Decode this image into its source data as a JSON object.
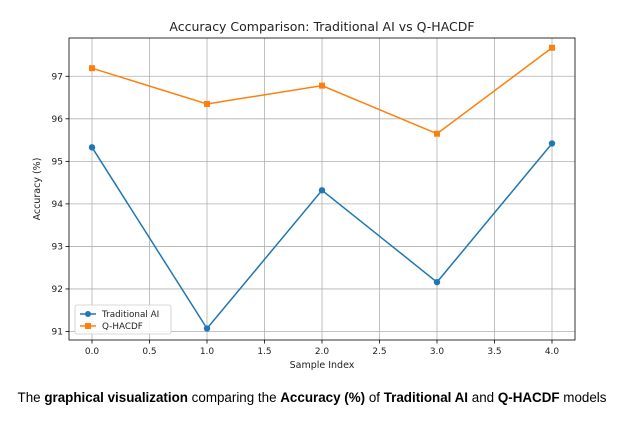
{
  "chart_data": {
    "type": "line",
    "title": "Accuracy Comparison: Traditional AI vs Q-HACDF",
    "xlabel": "Sample Index",
    "ylabel": "Accuracy (%)",
    "x": [
      0,
      1,
      2,
      3,
      4
    ],
    "xlim": [
      -0.2,
      4.2
    ],
    "ylim": [
      90.8,
      97.9
    ],
    "xticks": [
      "0.0",
      "0.5",
      "1.0",
      "1.5",
      "2.0",
      "2.5",
      "3.0",
      "3.5",
      "4.0"
    ],
    "yticks": [
      "91",
      "92",
      "93",
      "94",
      "95",
      "96",
      "97"
    ],
    "grid": true,
    "legend_position": "lower-left",
    "series": [
      {
        "name": "Traditional AI",
        "values": [
          95.33,
          91.07,
          94.32,
          92.16,
          95.42
        ],
        "color": "#1f77b4",
        "marker": "circle"
      },
      {
        "name": "Q-HACDF",
        "values": [
          97.19,
          96.35,
          96.78,
          95.65,
          97.67
        ],
        "color": "#ff7f0e",
        "marker": "square"
      }
    ]
  },
  "caption": {
    "parts": [
      {
        "text": "The ",
        "bold": false
      },
      {
        "text": "graphical visualization",
        "bold": true
      },
      {
        "text": " comparing the ",
        "bold": false
      },
      {
        "text": "Accuracy (%)",
        "bold": true
      },
      {
        "text": " of ",
        "bold": false
      },
      {
        "text": "Traditional AI",
        "bold": true
      },
      {
        "text": " and ",
        "bold": false
      },
      {
        "text": "Q-HACDF",
        "bold": true
      },
      {
        "text": " models",
        "bold": false
      }
    ]
  }
}
